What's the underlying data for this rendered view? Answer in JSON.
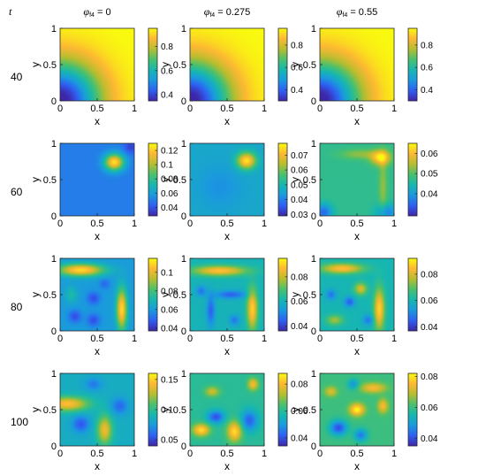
{
  "figure": {
    "row_param_label": "t",
    "column_param_symbol": "φ",
    "column_param_subscript": "f4"
  },
  "chart_data": {
    "type": "heatmap",
    "xlabel": "x",
    "ylabel": "y",
    "x_ticks": [
      "0",
      "0.5",
      "1"
    ],
    "y_ticks": [
      "0",
      "0.5",
      "1"
    ],
    "xlim": [
      0,
      1
    ],
    "ylim": [
      0,
      1
    ],
    "colormap": "parula",
    "colormap_stops": [
      "#3e26a8",
      "#2f5ff3",
      "#1a9ade",
      "#17b7b0",
      "#4ac16d",
      "#b7bd2f",
      "#fdb833",
      "#f9fb0e"
    ],
    "columns": [
      {
        "phi": "0",
        "title": "φf4 = 0",
        "title_value": " = 0"
      },
      {
        "phi": "0.275",
        "title": "φf4 = 0.275",
        "title_value": " = 0.275"
      },
      {
        "phi": "0.55",
        "title": "φf4 = 0.55",
        "title_value": " = 0.55"
      }
    ],
    "rows": [
      {
        "t": "40",
        "panels": [
          {
            "clim": [
              0.35,
              0.95
            ],
            "cb_ticks": [
              0.4,
              0.6,
              0.8
            ],
            "cb_labels": [
              "0.4",
              "0.6",
              "0.8"
            ],
            "fields": {
              "base": 0.95,
              "blobs": [
                {
                  "x": 0.0,
                  "y": 0.0,
                  "sx": 0.38,
                  "sy": 0.38,
                  "a": -0.62
                }
              ]
            }
          },
          {
            "clim": [
              0.3,
              0.95
            ],
            "cb_ticks": [
              0.4,
              0.6,
              0.8
            ],
            "cb_labels": [
              "0.4",
              "0.6",
              "0.8"
            ],
            "fields": {
              "base": 0.95,
              "blobs": [
                {
                  "x": 0.0,
                  "y": 0.0,
                  "sx": 0.38,
                  "sy": 0.38,
                  "a": -0.67
                }
              ]
            }
          },
          {
            "clim": [
              0.3,
              0.95
            ],
            "cb_ticks": [
              0.4,
              0.6,
              0.8
            ],
            "cb_labels": [
              "0.4",
              "0.6",
              "0.8"
            ],
            "fields": {
              "base": 0.95,
              "blobs": [
                {
                  "x": 0.0,
                  "y": 0.0,
                  "sx": 0.38,
                  "sy": 0.38,
                  "a": -0.67
                }
              ]
            }
          }
        ]
      },
      {
        "t": "60",
        "panels": [
          {
            "clim": [
              0.028,
              0.13
            ],
            "cb_ticks": [
              0.04,
              0.06,
              0.08,
              0.1,
              0.12
            ],
            "cb_labels": [
              "0.04",
              "0.06",
              "0.08",
              "0.1",
              "0.12"
            ],
            "fields": {
              "base": 0.05,
              "blobs": [
                {
                  "x": 0.73,
                  "y": 0.74,
                  "sx": 0.09,
                  "sy": 0.08,
                  "a": 0.075
                },
                {
                  "x": 0.95,
                  "y": 0.95,
                  "sx": 0.06,
                  "sy": 0.06,
                  "a": -0.015
                }
              ]
            }
          },
          {
            "clim": [
              0.029,
              0.078
            ],
            "cb_ticks": [
              0.03,
              0.04,
              0.05,
              0.06,
              0.07
            ],
            "cb_labels": [
              "0.03",
              "0.04",
              "0.05",
              "0.06",
              "0.07"
            ],
            "fields": {
              "base": 0.046,
              "blobs": [
                {
                  "x": 0.76,
                  "y": 0.76,
                  "sx": 0.09,
                  "sy": 0.08,
                  "a": 0.03
                },
                {
                  "x": 0.4,
                  "y": 0.4,
                  "sx": 0.2,
                  "sy": 0.2,
                  "a": -0.004
                }
              ]
            }
          },
          {
            "clim": [
              0.029,
              0.065
            ],
            "cb_ticks": [
              0.04,
              0.05,
              0.06
            ],
            "cb_labels": [
              "0.04",
              "0.05",
              "0.06"
            ],
            "fields": {
              "base": 0.047,
              "blobs": [
                {
                  "x": 0.82,
                  "y": 0.8,
                  "sx": 0.09,
                  "sy": 0.07,
                  "a": 0.016
                },
                {
                  "x": 0.55,
                  "y": 0.85,
                  "sx": 0.2,
                  "sy": 0.05,
                  "a": 0.006
                },
                {
                  "x": 0.85,
                  "y": 0.4,
                  "sx": 0.04,
                  "sy": 0.3,
                  "a": 0.006
                },
                {
                  "x": 0.05,
                  "y": 0.05,
                  "sx": 0.08,
                  "sy": 0.08,
                  "a": -0.012
                },
                {
                  "x": 0.9,
                  "y": 0.05,
                  "sx": 0.1,
                  "sy": 0.08,
                  "a": -0.01
                }
              ]
            }
          }
        ]
      },
      {
        "t": "80",
        "panels": [
          {
            "clim": [
              0.037,
              0.115
            ],
            "cb_ticks": [
              0.04,
              0.06,
              0.08,
              0.1
            ],
            "cb_labels": [
              "0.04",
              "0.06",
              "0.08",
              "0.1"
            ],
            "fields": {
              "base": 0.06,
              "blobs": [
                {
                  "x": 0.28,
                  "y": 0.84,
                  "sx": 0.22,
                  "sy": 0.06,
                  "a": 0.05
                },
                {
                  "x": 0.83,
                  "y": 0.3,
                  "sx": 0.05,
                  "sy": 0.2,
                  "a": 0.05
                },
                {
                  "x": 0.45,
                  "y": 0.45,
                  "sx": 0.06,
                  "sy": 0.06,
                  "a": -0.015
                },
                {
                  "x": 0.2,
                  "y": 0.2,
                  "sx": 0.06,
                  "sy": 0.06,
                  "a": -0.015
                },
                {
                  "x": 0.45,
                  "y": 0.15,
                  "sx": 0.06,
                  "sy": 0.06,
                  "a": -0.015
                },
                {
                  "x": 0.6,
                  "y": 0.65,
                  "sx": 0.05,
                  "sy": 0.05,
                  "a": -0.01
                },
                {
                  "x": 0.15,
                  "y": 0.5,
                  "sx": 0.06,
                  "sy": 0.08,
                  "a": 0.012
                }
              ]
            }
          },
          {
            "clim": [
              0.036,
              0.095
            ],
            "cb_ticks": [
              0.04,
              0.06,
              0.08
            ],
            "cb_labels": [
              "0.04",
              "0.06",
              "0.08"
            ],
            "fields": {
              "base": 0.06,
              "blobs": [
                {
                  "x": 0.4,
                  "y": 0.83,
                  "sx": 0.26,
                  "sy": 0.05,
                  "a": 0.028
                },
                {
                  "x": 0.84,
                  "y": 0.3,
                  "sx": 0.05,
                  "sy": 0.2,
                  "a": 0.03
                },
                {
                  "x": 0.28,
                  "y": 0.28,
                  "sx": 0.04,
                  "sy": 0.15,
                  "a": -0.015
                },
                {
                  "x": 0.55,
                  "y": 0.5,
                  "sx": 0.15,
                  "sy": 0.04,
                  "a": -0.015
                },
                {
                  "x": 0.15,
                  "y": 0.55,
                  "sx": 0.05,
                  "sy": 0.05,
                  "a": -0.012
                },
                {
                  "x": 0.6,
                  "y": 0.15,
                  "sx": 0.05,
                  "sy": 0.05,
                  "a": -0.012
                }
              ]
            }
          },
          {
            "clim": [
              0.037,
              0.092
            ],
            "cb_ticks": [
              0.04,
              0.06,
              0.08
            ],
            "cb_labels": [
              "0.04",
              "0.06",
              "0.08"
            ],
            "fields": {
              "base": 0.06,
              "blobs": [
                {
                  "x": 0.3,
                  "y": 0.86,
                  "sx": 0.2,
                  "sy": 0.05,
                  "a": 0.025
                },
                {
                  "x": 0.8,
                  "y": 0.3,
                  "sx": 0.05,
                  "sy": 0.2,
                  "a": 0.028
                },
                {
                  "x": 0.55,
                  "y": 0.58,
                  "sx": 0.06,
                  "sy": 0.06,
                  "a": 0.02
                },
                {
                  "x": 0.2,
                  "y": 0.15,
                  "sx": 0.08,
                  "sy": 0.05,
                  "a": 0.015
                },
                {
                  "x": 0.4,
                  "y": 0.4,
                  "sx": 0.05,
                  "sy": 0.05,
                  "a": -0.015
                },
                {
                  "x": 0.15,
                  "y": 0.5,
                  "sx": 0.05,
                  "sy": 0.05,
                  "a": -0.012
                },
                {
                  "x": 0.65,
                  "y": 0.15,
                  "sx": 0.05,
                  "sy": 0.05,
                  "a": -0.012
                }
              ]
            }
          }
        ]
      },
      {
        "t": "100",
        "panels": [
          {
            "clim": [
              0.04,
              0.16
            ],
            "cb_ticks": [
              0.05,
              0.1,
              0.15
            ],
            "cb_labels": [
              "0.05",
              "0.1",
              "0.15"
            ],
            "fields": {
              "base": 0.085,
              "blobs": [
                {
                  "x": 0.1,
                  "y": 0.58,
                  "sx": 0.2,
                  "sy": 0.07,
                  "a": 0.06
                },
                {
                  "x": 0.6,
                  "y": 0.22,
                  "sx": 0.07,
                  "sy": 0.14,
                  "a": 0.055
                },
                {
                  "x": 0.28,
                  "y": 0.3,
                  "sx": 0.08,
                  "sy": 0.08,
                  "a": -0.03
                },
                {
                  "x": 0.8,
                  "y": 0.55,
                  "sx": 0.08,
                  "sy": 0.08,
                  "a": -0.025
                },
                {
                  "x": 0.45,
                  "y": 0.85,
                  "sx": 0.08,
                  "sy": 0.06,
                  "a": -0.02
                }
              ]
            }
          },
          {
            "clim": [
              0.034,
              0.088
            ],
            "cb_ticks": [
              0.04,
              0.06,
              0.08
            ],
            "cb_labels": [
              "0.04",
              "0.06",
              "0.08"
            ],
            "fields": {
              "base": 0.06,
              "blobs": [
                {
                  "x": 0.15,
                  "y": 0.22,
                  "sx": 0.08,
                  "sy": 0.06,
                  "a": 0.025
                },
                {
                  "x": 0.6,
                  "y": 0.2,
                  "sx": 0.07,
                  "sy": 0.1,
                  "a": 0.025
                },
                {
                  "x": 0.85,
                  "y": 0.85,
                  "sx": 0.05,
                  "sy": 0.06,
                  "a": 0.02
                },
                {
                  "x": 0.3,
                  "y": 0.75,
                  "sx": 0.07,
                  "sy": 0.05,
                  "a": 0.015
                },
                {
                  "x": 0.35,
                  "y": 0.4,
                  "sx": 0.08,
                  "sy": 0.06,
                  "a": -0.02
                },
                {
                  "x": 0.8,
                  "y": 0.35,
                  "sx": 0.08,
                  "sy": 0.1,
                  "a": -0.018
                }
              ]
            }
          },
          {
            "clim": [
              0.035,
              0.082
            ],
            "cb_ticks": [
              0.04,
              0.06,
              0.08
            ],
            "cb_labels": [
              "0.04",
              "0.06",
              "0.08"
            ],
            "fields": {
              "base": 0.06,
              "blobs": [
                {
                  "x": 0.5,
                  "y": 0.5,
                  "sx": 0.07,
                  "sy": 0.06,
                  "a": 0.022
                },
                {
                  "x": 0.72,
                  "y": 0.8,
                  "sx": 0.12,
                  "sy": 0.05,
                  "a": 0.015
                },
                {
                  "x": 0.85,
                  "y": 0.55,
                  "sx": 0.05,
                  "sy": 0.07,
                  "a": 0.015
                },
                {
                  "x": 0.15,
                  "y": 0.75,
                  "sx": 0.06,
                  "sy": 0.05,
                  "a": 0.012
                },
                {
                  "x": 0.25,
                  "y": 0.25,
                  "sx": 0.08,
                  "sy": 0.07,
                  "a": -0.02
                },
                {
                  "x": 0.55,
                  "y": 0.15,
                  "sx": 0.06,
                  "sy": 0.06,
                  "a": -0.015
                },
                {
                  "x": 0.45,
                  "y": 0.85,
                  "sx": 0.05,
                  "sy": 0.05,
                  "a": -0.012
                }
              ]
            }
          }
        ]
      }
    ]
  }
}
